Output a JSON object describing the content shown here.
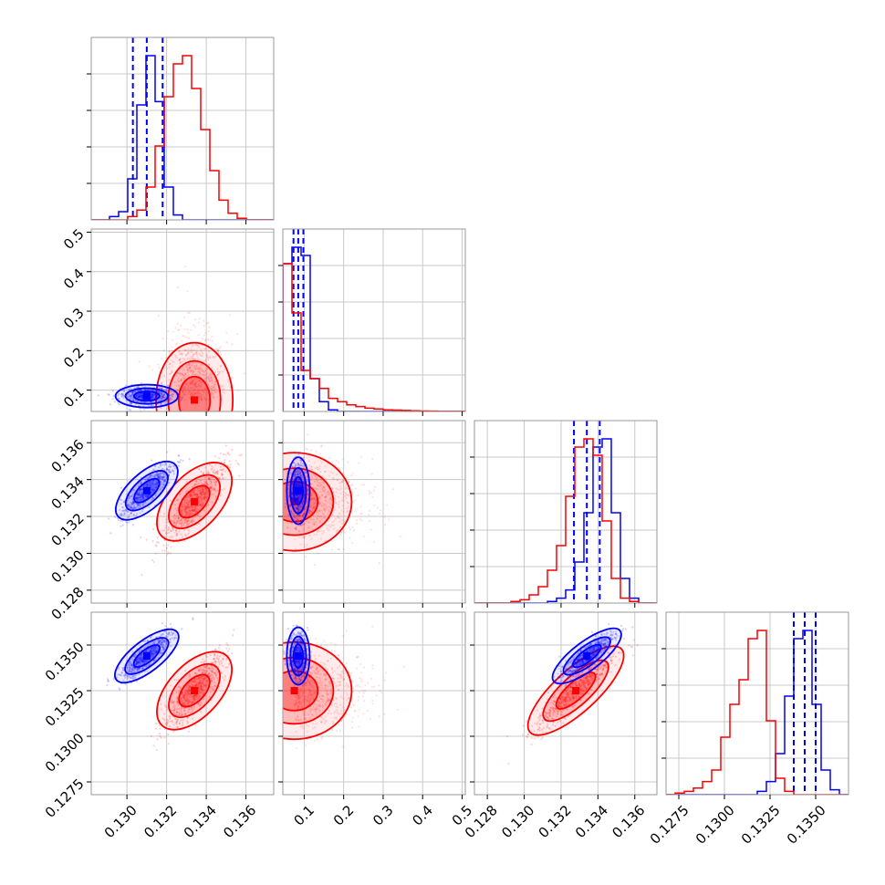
{
  "colors": {
    "series_a": "#0000ff",
    "series_b": "#ff0000",
    "grid": "#c8c8c8",
    "frame": "#999999"
  },
  "chart_data": {
    "type": "corner",
    "grid": true,
    "n_params": 4,
    "params": [
      {
        "lim": [
          0.1282,
          0.1374
        ],
        "ticks": [
          "0.130",
          "0.132",
          "0.134",
          "0.136"
        ],
        "tick_values": [
          0.13,
          0.132,
          0.134,
          0.136
        ]
      },
      {
        "lim": [
          0.046,
          0.508
        ],
        "ticks": [
          "0.1",
          "0.2",
          "0.3",
          "0.4",
          "0.5"
        ],
        "tick_values": [
          0.1,
          0.2,
          0.3,
          0.4,
          0.5
        ]
      },
      {
        "lim": [
          0.1273,
          0.1372
        ],
        "ticks": [
          "0.128",
          "0.130",
          "0.132",
          "0.134",
          "0.136"
        ],
        "tick_values": [
          0.128,
          0.13,
          0.132,
          0.134,
          0.136
        ]
      },
      {
        "lim": [
          0.1268,
          0.1368
        ],
        "ticks": [
          "0.1275",
          "0.1300",
          "0.1325",
          "0.1350"
        ],
        "tick_values": [
          0.1275,
          0.13,
          0.1325,
          0.135
        ]
      }
    ],
    "series": [
      {
        "color": "#0000ff",
        "mean": [
          0.131,
          0.085,
          0.1334,
          0.1344
        ],
        "sd": [
          0.00065,
          0.012,
          0.00075,
          0.00065
        ],
        "corr": [
          [
            0,
            1,
            0.0
          ],
          [
            0,
            2,
            0.85
          ],
          [
            0,
            3,
            0.85
          ],
          [
            2,
            3,
            0.88
          ],
          [
            1,
            2,
            0.0
          ],
          [
            1,
            3,
            0.0
          ]
        ],
        "quantiles": [
          [
            0.1303,
            0.131,
            0.1318
          ],
          [
            0.073,
            0.085,
            0.098
          ],
          [
            0.1327,
            0.1334,
            0.1341
          ],
          [
            0.1338,
            0.1344,
            0.135
          ]
        ],
        "hist": [
          {
            "edges": [
              0.1282,
              0.1374
            ],
            "values": [
              0,
              0,
              0.02,
              0.05,
              0.25,
              0.7,
              1.0,
              0.72,
              0.2,
              0.03,
              0,
              0,
              0,
              0,
              0,
              0,
              0,
              0,
              0,
              0
            ]
          },
          {
            "edges": [
              0.046,
              0.508
            ],
            "values": [
              0.9,
              1.0,
              0.95,
              0.2,
              0.06,
              0.01,
              0,
              0,
              0,
              0,
              0,
              0,
              0,
              0,
              0,
              0,
              0,
              0,
              0,
              0
            ]
          },
          {
            "edges": [
              0.1273,
              0.1372
            ],
            "values": [
              0,
              0,
              0,
              0,
              0,
              0,
              0,
              0,
              0.01,
              0.03,
              0.08,
              0.25,
              0.55,
              0.95,
              1.0,
              0.55,
              0.15,
              0.03,
              0,
              0
            ]
          },
          {
            "edges": [
              0.1268,
              0.1368
            ],
            "values": [
              0,
              0,
              0,
              0,
              0,
              0,
              0,
              0,
              0,
              0,
              0.02,
              0.08,
              0.25,
              0.6,
              0.95,
              1.0,
              0.55,
              0.15,
              0.03,
              0
            ]
          }
        ]
      },
      {
        "color": "#ff0000",
        "mean": [
          0.1334,
          0.075,
          0.1328,
          0.1325
        ],
        "sd": [
          0.0008,
          0.06,
          0.0011,
          0.0011
        ],
        "corr": [
          [
            0,
            2,
            0.85
          ],
          [
            0,
            3,
            0.85
          ],
          [
            2,
            3,
            0.92
          ],
          [
            0,
            1,
            0.0
          ],
          [
            1,
            2,
            0.0
          ],
          [
            1,
            3,
            0.0
          ]
        ],
        "quantiles": [],
        "hist": [
          {
            "edges": [
              0.1282,
              0.1374
            ],
            "values": [
              0,
              0,
              0,
              0,
              0.02,
              0.06,
              0.2,
              0.45,
              0.75,
              0.95,
              1.0,
              0.8,
              0.55,
              0.3,
              0.12,
              0.04,
              0.01,
              0,
              0,
              0
            ]
          },
          {
            "edges": [
              0.046,
              0.508
            ],
            "values": [
              0.9,
              0.6,
              0.25,
              0.2,
              0.14,
              0.08,
              0.06,
              0.04,
              0.03,
              0.02,
              0.015,
              0.01,
              0.008,
              0.006,
              0.004,
              0.003,
              0.002,
              0.001,
              0.001,
              0.001
            ]
          },
          {
            "edges": [
              0.1273,
              0.1372
            ],
            "values": [
              0,
              0,
              0,
              0,
              0.01,
              0.02,
              0.05,
              0.1,
              0.2,
              0.35,
              0.65,
              0.95,
              1.0,
              0.9,
              0.5,
              0.15,
              0.03,
              0.01,
              0,
              0
            ]
          },
          {
            "edges": [
              0.1268,
              0.1368
            ],
            "values": [
              0,
              0.01,
              0.02,
              0.04,
              0.08,
              0.15,
              0.35,
              0.55,
              0.7,
              0.95,
              1.0,
              0.45,
              0.1,
              0.02,
              0,
              0,
              0,
              0,
              0,
              0
            ]
          }
        ]
      }
    ]
  }
}
